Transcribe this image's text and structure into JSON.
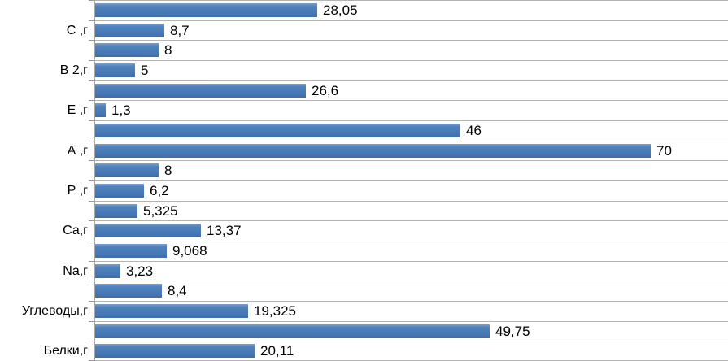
{
  "chart_data": {
    "type": "bar",
    "orientation": "horizontal",
    "title": "",
    "xlabel": "",
    "ylabel": "",
    "xlim": [
      0,
      80
    ],
    "grid": "horizontal-category-lines",
    "legend": "none",
    "decimal_separator": ",",
    "categories": [
      "С ,г",
      "В 2,г",
      "Е ,г",
      "А ,г",
      "Р ,г",
      "Са,г",
      "Na,г",
      "Углеводы,г",
      "Белки,г"
    ],
    "rows": [
      {
        "label": "",
        "value": 28.05,
        "value_label": "28,05"
      },
      {
        "label": "С ,г",
        "value": 8.7,
        "value_label": "8,7"
      },
      {
        "label": "",
        "value": 8,
        "value_label": "8"
      },
      {
        "label": "В 2,г",
        "value": 5,
        "value_label": "5"
      },
      {
        "label": "",
        "value": 26.6,
        "value_label": "26,6"
      },
      {
        "label": "Е ,г",
        "value": 1.3,
        "value_label": "1,3"
      },
      {
        "label": "",
        "value": 46,
        "value_label": "46"
      },
      {
        "label": "А ,г",
        "value": 70,
        "value_label": "70"
      },
      {
        "label": "",
        "value": 8,
        "value_label": "8"
      },
      {
        "label": "Р ,г",
        "value": 6.2,
        "value_label": "6,2"
      },
      {
        "label": "",
        "value": 5.325,
        "value_label": "5,325"
      },
      {
        "label": "Са,г",
        "value": 13.37,
        "value_label": "13,37"
      },
      {
        "label": "",
        "value": 9.068,
        "value_label": "9,068"
      },
      {
        "label": "Na,г",
        "value": 3.23,
        "value_label": "3,23"
      },
      {
        "label": "",
        "value": 8.4,
        "value_label": "8,4"
      },
      {
        "label": "Углеводы,г",
        "value": 19.325,
        "value_label": "19,325"
      },
      {
        "label": "",
        "value": 49.75,
        "value_label": "49,75"
      },
      {
        "label": "Белки,г",
        "value": 20.11,
        "value_label": "20,11"
      }
    ],
    "colors": {
      "bar": "#4f81bd",
      "gridline": "#b3b3b3",
      "tick": "#999999",
      "axis": "#a6a6a6",
      "text": "#000000",
      "background": "#ffffff"
    }
  }
}
